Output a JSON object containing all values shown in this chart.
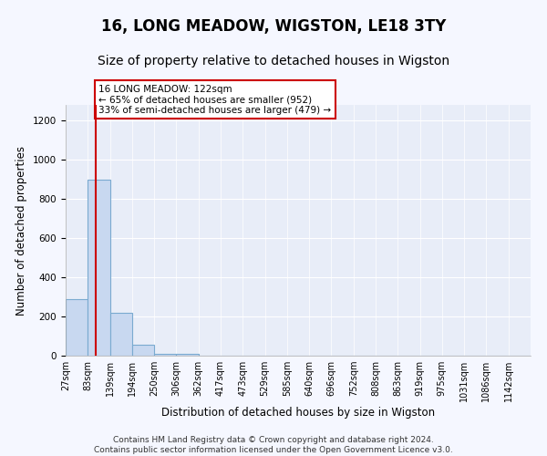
{
  "title": "16, LONG MEADOW, WIGSTON, LE18 3TY",
  "subtitle": "Size of property relative to detached houses in Wigston",
  "xlabel": "Distribution of detached houses by size in Wigston",
  "ylabel": "Number of detached properties",
  "bin_labels": [
    "27sqm",
    "83sqm",
    "139sqm",
    "194sqm",
    "250sqm",
    "306sqm",
    "362sqm",
    "417sqm",
    "473sqm",
    "529sqm",
    "585sqm",
    "640sqm",
    "696sqm",
    "752sqm",
    "808sqm",
    "863sqm",
    "919sqm",
    "975sqm",
    "1031sqm",
    "1086sqm",
    "1142sqm"
  ],
  "bar_heights": [
    290,
    900,
    220,
    55,
    10,
    10,
    0,
    0,
    0,
    0,
    0,
    0,
    0,
    0,
    0,
    0,
    0,
    0,
    0,
    0,
    0
  ],
  "bar_color": "#c8d8f0",
  "bar_edge_color": "#7aaad0",
  "property_line_x": 1.35,
  "property_line_label": "16 LONG MEADOW: 122sqm",
  "annotation_line1": "← 65% of detached houses are smaller (952)",
  "annotation_line2": "33% of semi-detached houses are larger (479) →",
  "annotation_box_color": "#ffffff",
  "annotation_box_edge": "#cc0000",
  "vline_color": "#cc0000",
  "ylim": [
    0,
    1280
  ],
  "yticks": [
    0,
    200,
    400,
    600,
    800,
    1000,
    1200
  ],
  "footer_line1": "Contains HM Land Registry data © Crown copyright and database right 2024.",
  "footer_line2": "Contains public sector information licensed under the Open Government Licence v3.0.",
  "background_color": "#f5f7ff",
  "plot_background": "#e8edf8",
  "grid_color": "#ffffff",
  "title_fontsize": 12,
  "subtitle_fontsize": 10,
  "axis_label_fontsize": 8.5,
  "tick_fontsize": 7.5,
  "footer_fontsize": 6.5
}
